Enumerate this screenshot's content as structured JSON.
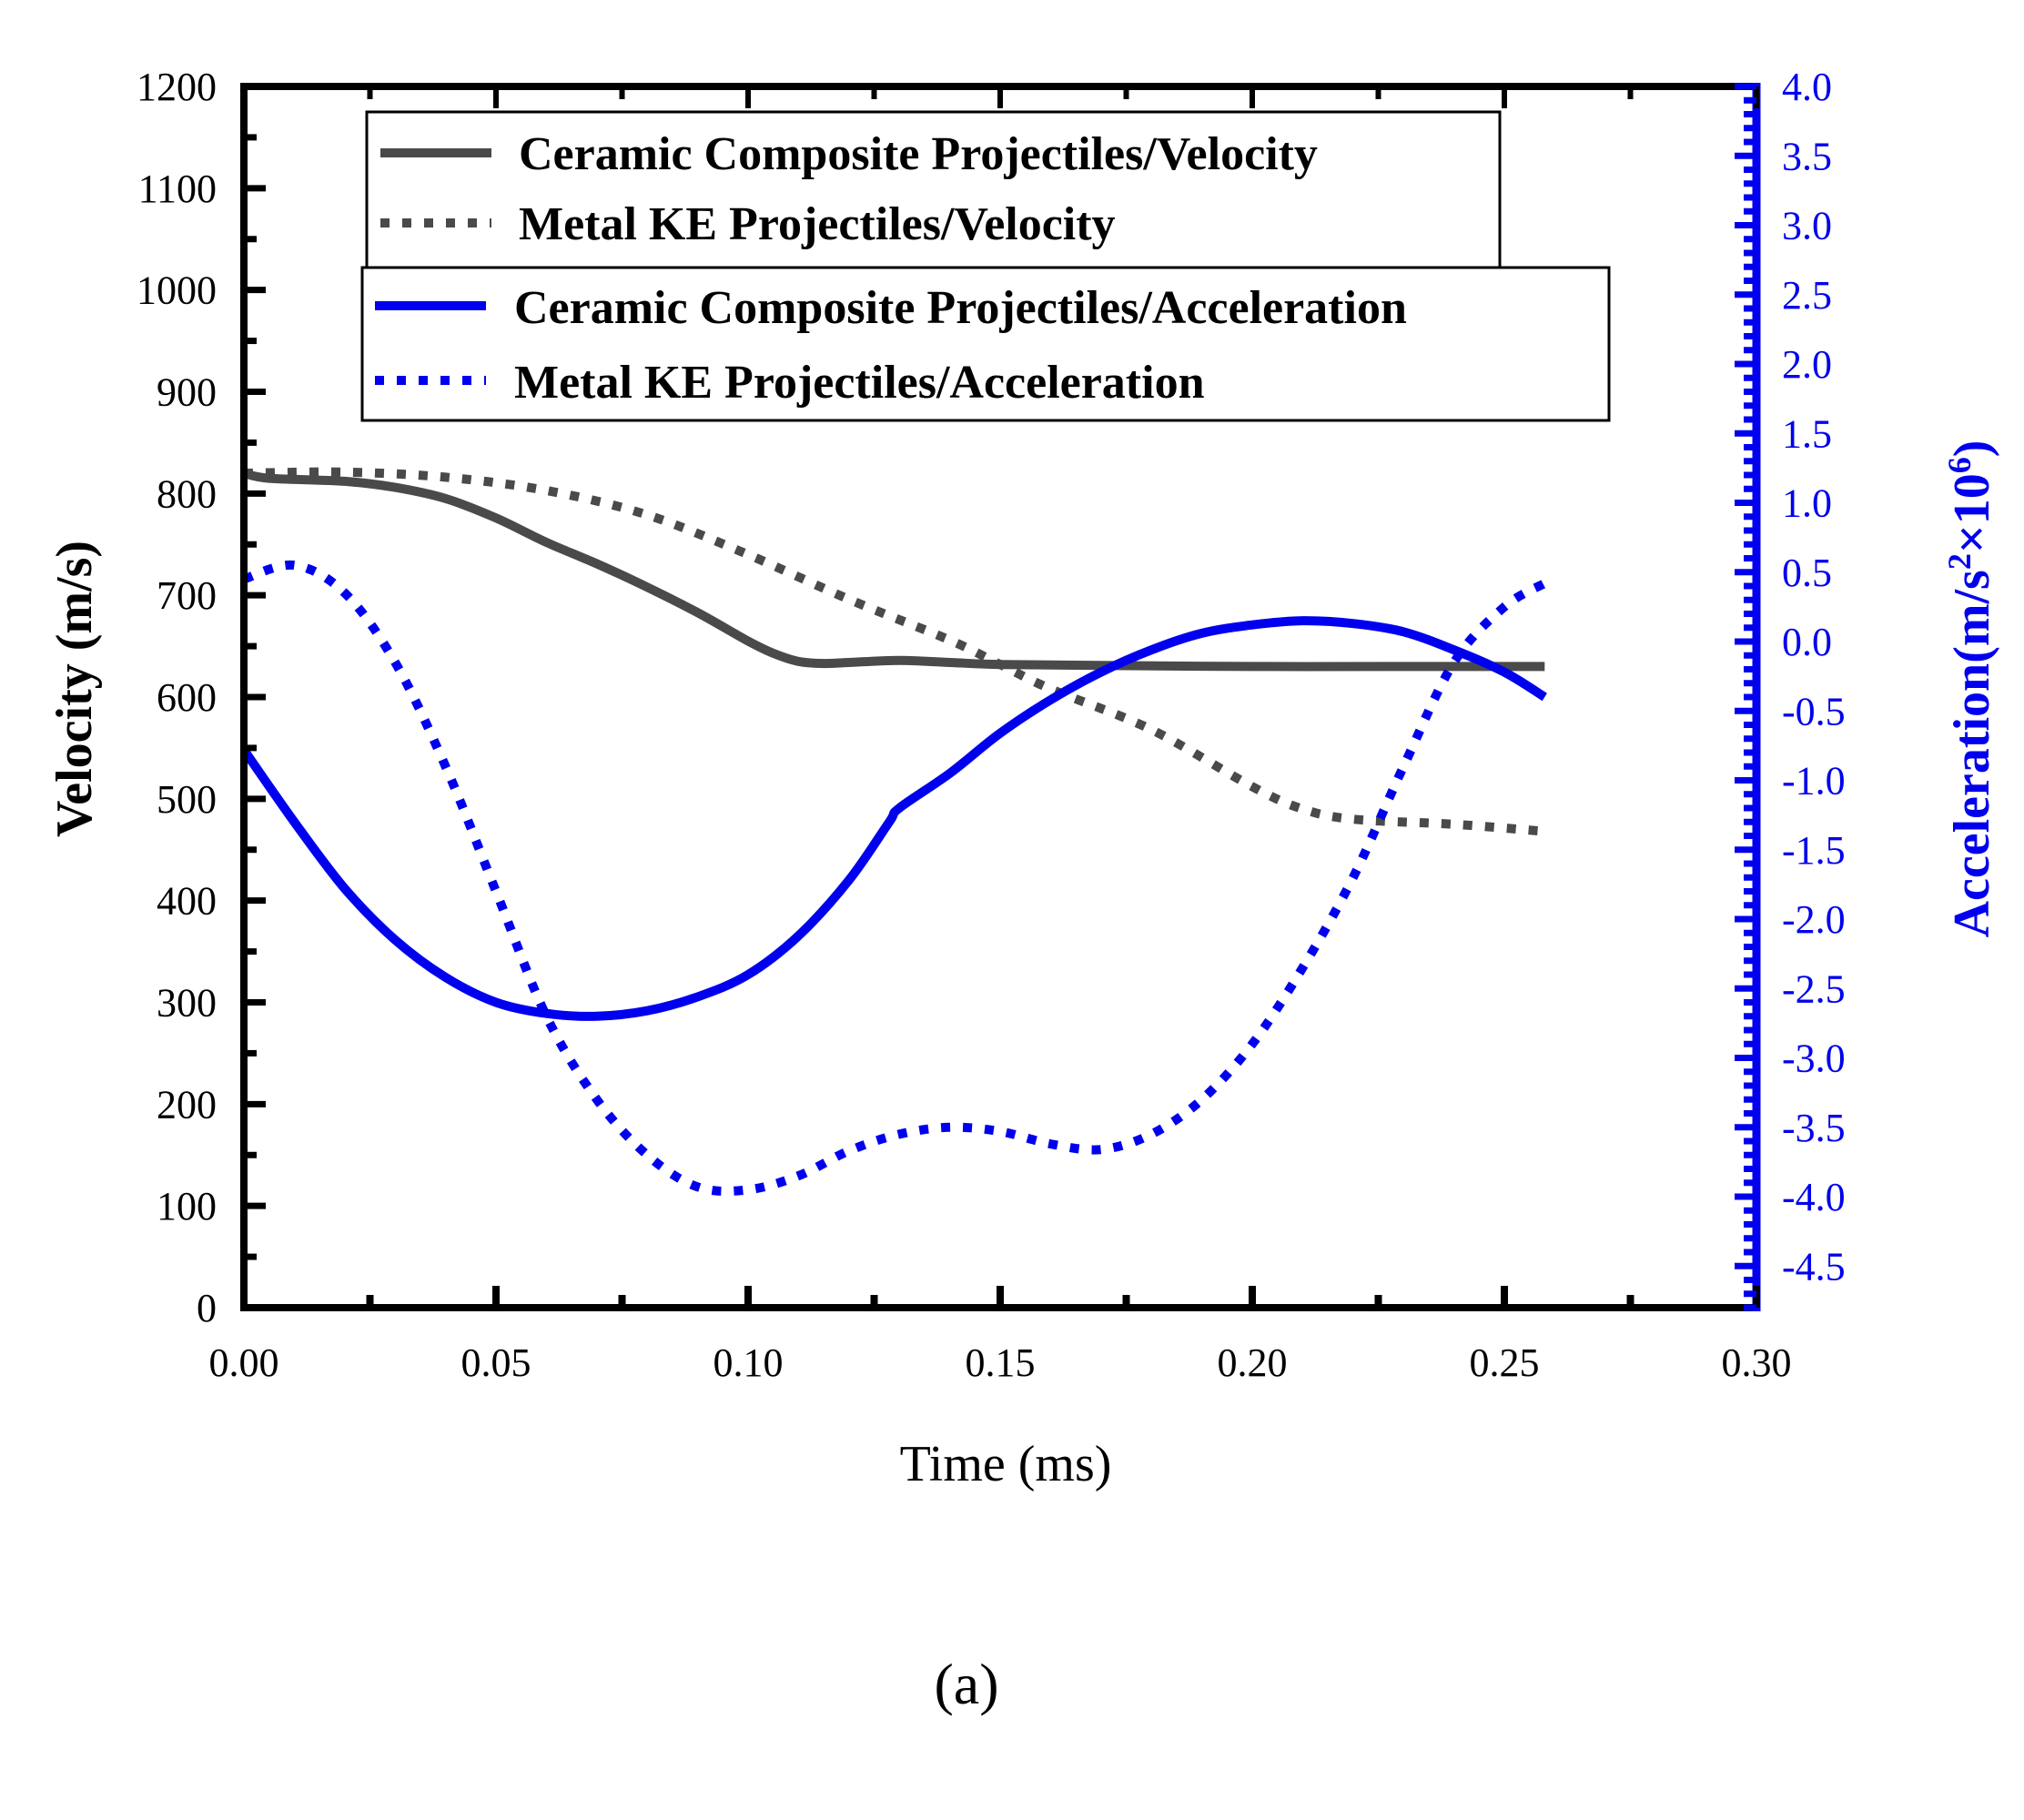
{
  "caption": "(a)",
  "chart_data": {
    "type": "line",
    "title": "",
    "xlabel": "Time (ms)",
    "ylabel": "Velocity (m/s)",
    "y2label_prefix": "Acceleration(m/s",
    "y2label_sup1": "2",
    "y2label_mid": "×10",
    "y2label_sup2": "6",
    "y2label_suffix": ")",
    "xlim": [
      0,
      0.3
    ],
    "ylim": [
      0,
      1200
    ],
    "y2lim": [
      -4.8,
      4.0
    ],
    "x_ticks": [
      "0.00",
      "0.05",
      "0.10",
      "0.15",
      "0.20",
      "0.25",
      "0.30"
    ],
    "x_tick_values": [
      0,
      0.05,
      0.1,
      0.15,
      0.2,
      0.25,
      0.3
    ],
    "y_ticks": [
      "0",
      "100",
      "200",
      "300",
      "400",
      "500",
      "600",
      "700",
      "800",
      "900",
      "1000",
      "1100",
      "1200"
    ],
    "y_tick_values": [
      0,
      100,
      200,
      300,
      400,
      500,
      600,
      700,
      800,
      900,
      1000,
      1100,
      1200
    ],
    "y2_ticks": [
      "4.0",
      "3.5",
      "3.0",
      "2.5",
      "2.0",
      "1.5",
      "1.0",
      "0.5",
      "0.0",
      "-0.5",
      "-1.0",
      "-1.5",
      "-2.0",
      "-2.5",
      "-3.0",
      "-3.5",
      "-4.0",
      "-4.5"
    ],
    "y2_tick_values": [
      4.0,
      3.5,
      3.0,
      2.5,
      2.0,
      1.5,
      1.0,
      0.5,
      0.0,
      -0.5,
      -1.0,
      -1.5,
      -2.0,
      -2.5,
      -3.0,
      -3.5,
      -4.0,
      -4.5
    ],
    "colors": {
      "velocity": "#4a4a4a",
      "acceleration": "#0000ee",
      "frame": "#000000",
      "right_axis": "#0000ee"
    },
    "legend_velocity": [
      "Ceramic Composite Projectiles/Velocity",
      "Metal KE Projectiles/Velocity"
    ],
    "legend_acceleration": [
      "Ceramic Composite Projectiles/Acceleration",
      "Metal KE Projectiles/Acceleration"
    ],
    "series": [
      {
        "name": "Ceramic Composite Projectiles/Velocity",
        "axis": "left",
        "style": "solid",
        "x": [
          0,
          0.005,
          0.02,
          0.03,
          0.04,
          0.05,
          0.06,
          0.07,
          0.08,
          0.09,
          0.1,
          0.105,
          0.11,
          0.115,
          0.12,
          0.13,
          0.14,
          0.15,
          0.17,
          0.2,
          0.23,
          0.258
        ],
        "y": [
          820,
          815,
          812,
          806,
          795,
          776,
          752,
          731,
          708,
          683,
          655,
          643,
          635,
          633,
          634,
          636,
          634,
          632,
          631,
          630,
          630,
          630
        ]
      },
      {
        "name": "Metal KE Projectiles/Velocity",
        "axis": "left",
        "style": "dotted",
        "x": [
          0,
          0.02,
          0.04,
          0.06,
          0.08,
          0.1,
          0.12,
          0.14,
          0.15,
          0.16,
          0.18,
          0.2,
          0.21,
          0.22,
          0.24,
          0.258
        ],
        "y": [
          820,
          821,
          816,
          803,
          779,
          740,
          696,
          656,
          632,
          608,
          568,
          512,
          490,
          480,
          475,
          468
        ]
      },
      {
        "name": "Ceramic Composite Projectiles/Acceleration",
        "axis": "right",
        "style": "solid",
        "x": [
          0,
          0.01,
          0.02,
          0.03,
          0.04,
          0.05,
          0.06,
          0.07,
          0.08,
          0.09,
          0.1,
          0.11,
          0.12,
          0.128,
          0.13,
          0.14,
          0.15,
          0.16,
          0.17,
          0.18,
          0.19,
          0.2,
          0.21,
          0.22,
          0.23,
          0.24,
          0.25,
          0.258
        ],
        "y": [
          -0.78,
          -1.3,
          -1.78,
          -2.15,
          -2.42,
          -2.6,
          -2.68,
          -2.7,
          -2.66,
          -2.56,
          -2.4,
          -2.12,
          -1.72,
          -1.3,
          -1.2,
          -0.95,
          -0.66,
          -0.42,
          -0.22,
          -0.06,
          0.06,
          0.12,
          0.15,
          0.13,
          0.07,
          -0.06,
          -0.22,
          -0.4
        ]
      },
      {
        "name": "Metal KE Projectiles/Acceleration",
        "axis": "right",
        "style": "dotted",
        "x": [
          0,
          0.01,
          0.02,
          0.03,
          0.04,
          0.05,
          0.06,
          0.07,
          0.08,
          0.09,
          0.1,
          0.11,
          0.12,
          0.13,
          0.14,
          0.15,
          0.16,
          0.17,
          0.18,
          0.19,
          0.2,
          0.21,
          0.22,
          0.23,
          0.24,
          0.25,
          0.258
        ],
        "y": [
          0.45,
          0.55,
          0.35,
          -0.15,
          -0.9,
          -1.8,
          -2.7,
          -3.3,
          -3.7,
          -3.93,
          -3.95,
          -3.85,
          -3.67,
          -3.55,
          -3.5,
          -3.53,
          -3.62,
          -3.66,
          -3.55,
          -3.3,
          -2.9,
          -2.35,
          -1.7,
          -0.9,
          -0.15,
          0.25,
          0.42
        ]
      }
    ]
  }
}
